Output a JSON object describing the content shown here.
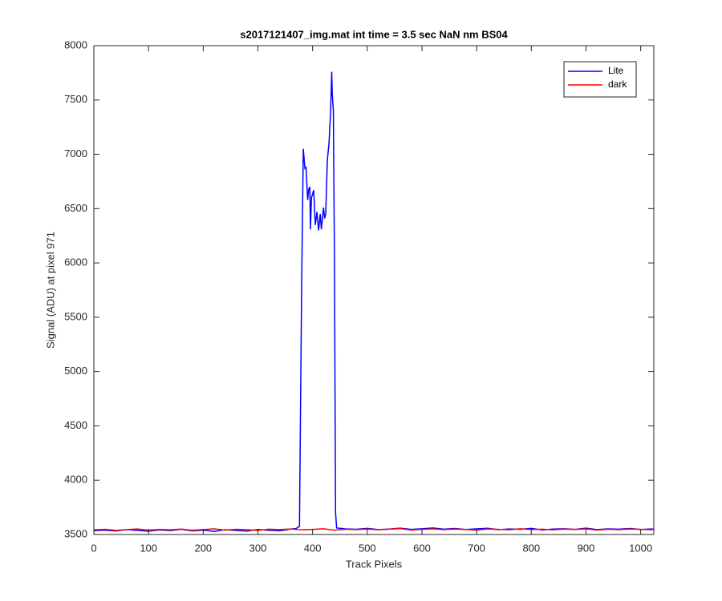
{
  "chart_data": {
    "type": "line",
    "title": "s2017121407_img.mat int time = 3.5 sec  NaN nm BS04",
    "x_label": "Track Pixels",
    "y_label": "Signal (ADU) at pixel 971",
    "xlim": [
      0,
      1024
    ],
    "ylim": [
      3500,
      8000
    ],
    "xticks": [
      0,
      100,
      200,
      300,
      400,
      500,
      600,
      700,
      800,
      900,
      1000
    ],
    "yticks": [
      3500,
      4000,
      4500,
      5000,
      5500,
      6000,
      6500,
      7000,
      7500,
      8000
    ],
    "grid": false,
    "legend_position": "top-right",
    "series": [
      {
        "name": "Lite",
        "color": "#0000ff",
        "x": [
          0,
          20,
          40,
          60,
          80,
          100,
          120,
          140,
          160,
          180,
          200,
          220,
          240,
          260,
          280,
          300,
          320,
          340,
          360,
          370,
          376,
          380,
          383,
          386,
          388,
          391,
          393,
          395,
          396,
          398,
          402,
          405,
          408,
          411,
          414,
          416,
          420,
          422,
          424,
          427,
          430,
          433,
          435,
          436,
          438,
          440,
          442,
          444,
          460,
          480,
          500,
          520,
          540,
          560,
          580,
          600,
          620,
          640,
          660,
          680,
          700,
          720,
          740,
          760,
          780,
          800,
          820,
          840,
          860,
          880,
          900,
          920,
          940,
          960,
          980,
          1000,
          1020,
          1024
        ],
        "values": [
          3535,
          3540,
          3532,
          3545,
          3538,
          3530,
          3542,
          3536,
          3548,
          3533,
          3540,
          3528,
          3544,
          3537,
          3531,
          3546,
          3539,
          3534,
          3550,
          3555,
          3575,
          5800,
          7050,
          6870,
          6880,
          6580,
          6680,
          6700,
          6310,
          6600,
          6670,
          6350,
          6470,
          6300,
          6450,
          6310,
          6510,
          6410,
          6450,
          6950,
          7100,
          7400,
          7760,
          7550,
          7400,
          6000,
          3700,
          3560,
          3552,
          3548,
          3556,
          3545,
          3550,
          3558,
          3547,
          3553,
          3560,
          3549,
          3555,
          3546,
          3552,
          3557,
          3544,
          3551,
          3548,
          3556,
          3542,
          3550,
          3553,
          3547,
          3558,
          3545,
          3552,
          3549,
          3555,
          3546,
          3551,
          3548
        ]
      },
      {
        "name": "dark",
        "color": "#ff0000",
        "x": [
          0,
          20,
          40,
          60,
          80,
          100,
          120,
          140,
          160,
          180,
          200,
          220,
          240,
          260,
          280,
          300,
          320,
          340,
          360,
          380,
          400,
          420,
          440,
          460,
          480,
          500,
          520,
          540,
          560,
          580,
          600,
          620,
          640,
          660,
          680,
          700,
          720,
          740,
          760,
          780,
          800,
          820,
          840,
          860,
          880,
          900,
          920,
          940,
          960,
          980,
          1000,
          1020,
          1024
        ],
        "values": [
          3542,
          3548,
          3538,
          3545,
          3551,
          3540,
          3547,
          3543,
          3550,
          3539,
          3546,
          3552,
          3541,
          3548,
          3544,
          3537,
          3549,
          3545,
          3551,
          3542,
          3547,
          3553,
          3540,
          3548,
          3545,
          3550,
          3543,
          3549,
          3554,
          3541,
          3547,
          3552,
          3544,
          3550,
          3546,
          3540,
          3551,
          3547,
          3543,
          3553,
          3545,
          3549,
          3542,
          3550,
          3546,
          3552,
          3541,
          3548,
          3544,
          3551,
          3547,
          3543,
          3549
        ]
      }
    ]
  }
}
